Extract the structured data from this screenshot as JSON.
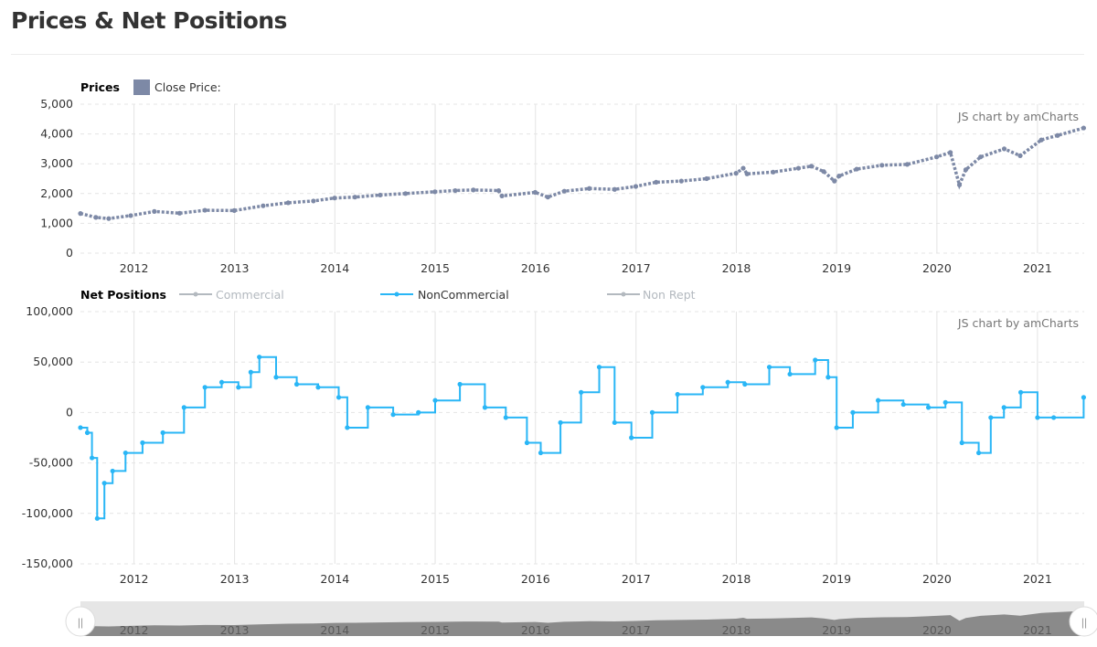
{
  "page": {
    "title": "Prices & Net Positions"
  },
  "chart_data": [
    {
      "type": "scatter",
      "title": "Prices",
      "legend": [
        {
          "name": "Close Price:",
          "color": "#7d89a6"
        }
      ],
      "credit": "JS chart by amCharts",
      "x_type": "date",
      "xlim": [
        "2011-06-20",
        "2021-06-20"
      ],
      "ylim": [
        0,
        5000
      ],
      "yticks": [
        "5,000",
        "4,000",
        "3,000",
        "2,000",
        "1,000",
        "0"
      ],
      "xticks": [
        "2012",
        "2013",
        "2014",
        "2015",
        "2016",
        "2017",
        "2018",
        "2019",
        "2020",
        "2021"
      ],
      "grid": true,
      "series": [
        {
          "name": "Close Price:",
          "color": "#7d89a6",
          "x": [
            "2011-06-20",
            "2011-08-15",
            "2011-10-01",
            "2011-12-20",
            "2012-03-15",
            "2012-06-15",
            "2012-09-15",
            "2012-12-31",
            "2013-04-15",
            "2013-07-15",
            "2013-10-15",
            "2013-12-31",
            "2014-03-15",
            "2014-06-15",
            "2014-09-15",
            "2014-12-31",
            "2015-03-15",
            "2015-05-20",
            "2015-08-20",
            "2015-09-01",
            "2015-12-31",
            "2016-02-15",
            "2016-04-15",
            "2016-07-15",
            "2016-10-15",
            "2016-12-31",
            "2017-03-15",
            "2017-06-15",
            "2017-09-15",
            "2017-12-31",
            "2018-01-26",
            "2018-02-09",
            "2018-05-15",
            "2018-08-15",
            "2018-10-01",
            "2018-11-15",
            "2018-12-24",
            "2019-01-10",
            "2019-03-15",
            "2019-06-15",
            "2019-09-15",
            "2019-12-31",
            "2020-02-19",
            "2020-03-23",
            "2020-04-15",
            "2020-06-08",
            "2020-09-02",
            "2020-10-30",
            "2021-01-15",
            "2021-03-15",
            "2021-06-18"
          ],
          "y": [
            1330,
            1200,
            1160,
            1260,
            1400,
            1340,
            1440,
            1430,
            1590,
            1690,
            1750,
            1850,
            1880,
            1950,
            2000,
            2060,
            2100,
            2120,
            2100,
            1920,
            2040,
            1880,
            2080,
            2170,
            2140,
            2240,
            2380,
            2420,
            2500,
            2680,
            2850,
            2660,
            2720,
            2850,
            2920,
            2740,
            2420,
            2590,
            2820,
            2950,
            2980,
            3230,
            3380,
            2290,
            2800,
            3230,
            3500,
            3270,
            3800,
            3950,
            4200
          ]
        }
      ]
    },
    {
      "type": "line",
      "title": "Net Positions",
      "legend": [
        {
          "name": "Commercial",
          "color": "#b3b9bf",
          "active": false
        },
        {
          "name": "NonCommercial",
          "color": "#29b6f6",
          "active": true
        },
        {
          "name": "Non Rept",
          "color": "#b3b9bf",
          "active": false
        }
      ],
      "credit": "JS chart by amCharts",
      "x_type": "date",
      "xlim": [
        "2011-06-20",
        "2021-06-20"
      ],
      "ylim": [
        -150000,
        100000
      ],
      "yticks": [
        "100,000",
        "50,000",
        "0",
        "-50,000",
        "-100,000",
        "-150,000"
      ],
      "xticks": [
        "2012",
        "2013",
        "2014",
        "2015",
        "2016",
        "2017",
        "2018",
        "2019",
        "2020",
        "2021"
      ],
      "grid": true,
      "series": [
        {
          "name": "NonCommercial",
          "color": "#29b6f6",
          "x": [
            "2011-06-20",
            "2011-07-15",
            "2011-08-01",
            "2011-08-20",
            "2011-09-15",
            "2011-10-15",
            "2011-12-01",
            "2012-02-01",
            "2012-04-15",
            "2012-07-01",
            "2012-09-15",
            "2012-11-15",
            "2013-01-15",
            "2013-03-01",
            "2013-04-01",
            "2013-06-01",
            "2013-08-15",
            "2013-11-01",
            "2014-01-15",
            "2014-02-15",
            "2014-05-01",
            "2014-08-01",
            "2014-11-01",
            "2015-01-01",
            "2015-04-01",
            "2015-07-01",
            "2015-09-15",
            "2015-12-01",
            "2016-01-20",
            "2016-04-01",
            "2016-06-15",
            "2016-08-20",
            "2016-10-15",
            "2016-12-15",
            "2017-03-01",
            "2017-06-01",
            "2017-09-01",
            "2017-12-01",
            "2018-02-01",
            "2018-05-01",
            "2018-07-15",
            "2018-10-15",
            "2018-12-01",
            "2019-01-01",
            "2019-03-01",
            "2019-06-01",
            "2019-09-01",
            "2019-12-01",
            "2020-02-01",
            "2020-04-01",
            "2020-06-01",
            "2020-07-15",
            "2020-09-01",
            "2020-11-01",
            "2021-01-01",
            "2021-03-01",
            "2021-06-18"
          ],
          "y": [
            -15000,
            -20000,
            -45000,
            -105000,
            -70000,
            -58000,
            -40000,
            -30000,
            -20000,
            5000,
            25000,
            30000,
            25000,
            40000,
            55000,
            35000,
            28000,
            25000,
            15000,
            -15000,
            5000,
            -2000,
            0,
            12000,
            28000,
            5000,
            -5000,
            -30000,
            -40000,
            -10000,
            20000,
            45000,
            -10000,
            -25000,
            0,
            18000,
            25000,
            30000,
            28000,
            45000,
            38000,
            52000,
            35000,
            -15000,
            0,
            12000,
            8000,
            5000,
            10000,
            -30000,
            -40000,
            -5000,
            5000,
            20000,
            -5000,
            -5000,
            15000
          ]
        }
      ]
    }
  ],
  "navigator": {
    "labels": [
      "2012",
      "2013",
      "2014",
      "2015",
      "2016",
      "2017",
      "2018",
      "2019",
      "2020",
      "2021"
    ],
    "left_handle": "||",
    "right_handle": "||"
  }
}
